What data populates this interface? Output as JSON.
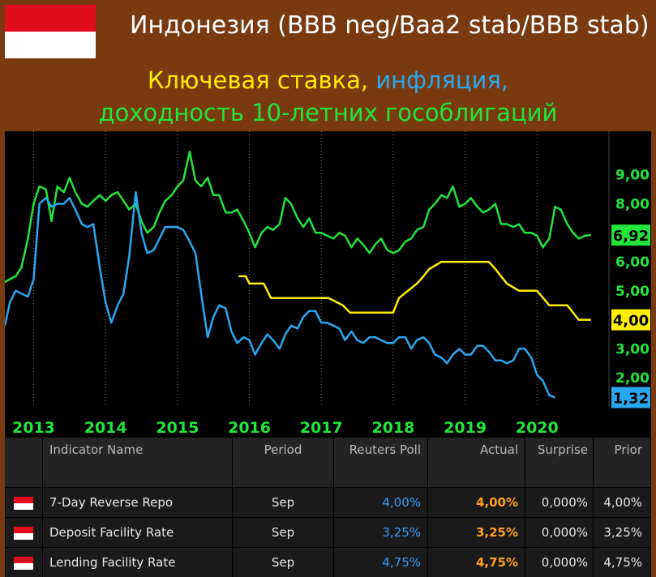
{
  "header": {
    "title": "Индонезия (BBB neg/Baa2 stab/BBB stab)",
    "subtitle_key_rate": "Ключевая ставка,",
    "subtitle_inflation": "инфляция,",
    "subtitle_yield": "доходность 10-летних гособлигаций"
  },
  "colors": {
    "yield": "#21e53a",
    "key_rate": "#ffee00",
    "inflation": "#29a8f0",
    "background": "#000000",
    "frame": "#7a3a10"
  },
  "chart_data": {
    "type": "line",
    "xlim": [
      2012.6,
      2021.0
    ],
    "ylim": [
      1.0,
      10.5
    ],
    "x_ticks": [
      "2013",
      "2014",
      "2015",
      "2016",
      "2017",
      "2018",
      "2019",
      "2020"
    ],
    "x_tick_values": [
      2013,
      2014,
      2015,
      2016,
      2017,
      2018,
      2019,
      2020
    ],
    "y_ticks": [
      "2,00",
      "3,00",
      "5,00",
      "6,00",
      "8,00",
      "9,00"
    ],
    "y_tick_values": [
      2,
      3,
      5,
      6,
      8,
      9
    ],
    "last_value_labels": [
      {
        "series": "yield",
        "text": "6,92",
        "value": 6.92
      },
      {
        "series": "key_rate",
        "text": "4,00",
        "value": 4.0
      },
      {
        "series": "inflation",
        "text": "1,32",
        "value": 1.32
      }
    ],
    "series": [
      {
        "key": "yield",
        "points": [
          [
            2012.6,
            5.3
          ],
          [
            2012.67,
            5.4
          ],
          [
            2012.75,
            5.5
          ],
          [
            2012.83,
            5.8
          ],
          [
            2012.92,
            6.8
          ],
          [
            2013.0,
            8.0
          ],
          [
            2013.08,
            8.6
          ],
          [
            2013.17,
            8.5
          ],
          [
            2013.25,
            7.4
          ],
          [
            2013.33,
            8.6
          ],
          [
            2013.42,
            8.4
          ],
          [
            2013.5,
            8.9
          ],
          [
            2013.58,
            8.4
          ],
          [
            2013.67,
            8.0
          ],
          [
            2013.75,
            7.9
          ],
          [
            2013.83,
            8.1
          ],
          [
            2013.92,
            8.3
          ],
          [
            2014.0,
            8.1
          ],
          [
            2014.08,
            8.3
          ],
          [
            2014.17,
            8.4
          ],
          [
            2014.25,
            8.1
          ],
          [
            2014.33,
            7.8
          ],
          [
            2014.42,
            8.0
          ],
          [
            2014.5,
            7.4
          ],
          [
            2014.58,
            7.0
          ],
          [
            2014.67,
            7.2
          ],
          [
            2014.75,
            7.7
          ],
          [
            2014.83,
            8.1
          ],
          [
            2014.92,
            8.3
          ],
          [
            2015.0,
            8.6
          ],
          [
            2015.08,
            8.8
          ],
          [
            2015.17,
            9.8
          ],
          [
            2015.25,
            8.8
          ],
          [
            2015.33,
            8.6
          ],
          [
            2015.42,
            8.9
          ],
          [
            2015.5,
            8.3
          ],
          [
            2015.58,
            8.3
          ],
          [
            2015.67,
            7.7
          ],
          [
            2015.75,
            7.7
          ],
          [
            2015.83,
            7.8
          ],
          [
            2015.92,
            7.4
          ],
          [
            2016.0,
            7.0
          ],
          [
            2016.08,
            6.5
          ],
          [
            2016.17,
            7.0
          ],
          [
            2016.25,
            7.2
          ],
          [
            2016.33,
            7.1
          ],
          [
            2016.42,
            7.3
          ],
          [
            2016.5,
            8.2
          ],
          [
            2016.58,
            8.0
          ],
          [
            2016.67,
            7.5
          ],
          [
            2016.75,
            7.2
          ],
          [
            2016.83,
            7.5
          ],
          [
            2016.92,
            7.0
          ],
          [
            2017.0,
            7.0
          ],
          [
            2017.08,
            6.9
          ],
          [
            2017.17,
            6.8
          ],
          [
            2017.25,
            7.0
          ],
          [
            2017.33,
            6.9
          ],
          [
            2017.42,
            6.5
          ],
          [
            2017.5,
            6.8
          ],
          [
            2017.58,
            6.6
          ],
          [
            2017.67,
            6.3
          ],
          [
            2017.75,
            6.6
          ],
          [
            2017.83,
            6.8
          ],
          [
            2017.92,
            6.4
          ],
          [
            2018.0,
            6.3
          ],
          [
            2018.08,
            6.4
          ],
          [
            2018.17,
            6.7
          ],
          [
            2018.25,
            6.8
          ],
          [
            2018.33,
            7.1
          ],
          [
            2018.42,
            7.2
          ],
          [
            2018.5,
            7.8
          ],
          [
            2018.58,
            8.0
          ],
          [
            2018.67,
            8.3
          ],
          [
            2018.75,
            8.2
          ],
          [
            2018.83,
            8.6
          ],
          [
            2018.92,
            7.9
          ],
          [
            2019.0,
            8.0
          ],
          [
            2019.08,
            8.2
          ],
          [
            2019.17,
            7.9
          ],
          [
            2019.25,
            7.7
          ],
          [
            2019.33,
            7.8
          ],
          [
            2019.42,
            8.0
          ],
          [
            2019.5,
            7.3
          ],
          [
            2019.58,
            7.3
          ],
          [
            2019.67,
            7.2
          ],
          [
            2019.75,
            7.3
          ],
          [
            2019.83,
            7.0
          ],
          [
            2019.92,
            7.0
          ],
          [
            2020.0,
            6.9
          ],
          [
            2020.08,
            6.5
          ],
          [
            2020.17,
            6.8
          ],
          [
            2020.25,
            7.9
          ],
          [
            2020.33,
            7.8
          ],
          [
            2020.42,
            7.3
          ],
          [
            2020.5,
            7.0
          ],
          [
            2020.58,
            6.8
          ],
          [
            2020.67,
            6.9
          ],
          [
            2020.75,
            6.92
          ]
        ]
      },
      {
        "key": "key_rate",
        "points": [
          [
            2015.85,
            5.5
          ],
          [
            2015.95,
            5.5
          ],
          [
            2016.0,
            5.25
          ],
          [
            2016.2,
            5.25
          ],
          [
            2016.3,
            4.75
          ],
          [
            2017.0,
            4.75
          ],
          [
            2017.1,
            4.75
          ],
          [
            2017.3,
            4.5
          ],
          [
            2017.4,
            4.25
          ],
          [
            2017.9,
            4.25
          ],
          [
            2018.0,
            4.25
          ],
          [
            2018.08,
            4.75
          ],
          [
            2018.33,
            5.25
          ],
          [
            2018.42,
            5.5
          ],
          [
            2018.5,
            5.75
          ],
          [
            2018.67,
            6.0
          ],
          [
            2019.33,
            6.0
          ],
          [
            2019.42,
            5.75
          ],
          [
            2019.58,
            5.25
          ],
          [
            2019.75,
            5.0
          ],
          [
            2020.0,
            5.0
          ],
          [
            2020.17,
            4.5
          ],
          [
            2020.42,
            4.5
          ],
          [
            2020.58,
            4.0
          ],
          [
            2020.75,
            4.0
          ]
        ]
      },
      {
        "key": "inflation",
        "points": [
          [
            2012.6,
            3.8
          ],
          [
            2012.67,
            4.6
          ],
          [
            2012.75,
            5.0
          ],
          [
            2012.83,
            4.9
          ],
          [
            2012.92,
            4.8
          ],
          [
            2013.0,
            5.4
          ],
          [
            2013.08,
            8.0
          ],
          [
            2013.17,
            8.2
          ],
          [
            2013.25,
            7.9
          ],
          [
            2013.33,
            8.0
          ],
          [
            2013.42,
            8.0
          ],
          [
            2013.5,
            8.2
          ],
          [
            2013.58,
            7.8
          ],
          [
            2013.67,
            7.3
          ],
          [
            2013.75,
            7.2
          ],
          [
            2013.83,
            7.3
          ],
          [
            2013.92,
            5.8
          ],
          [
            2014.0,
            4.6
          ],
          [
            2014.08,
            3.9
          ],
          [
            2014.17,
            4.5
          ],
          [
            2014.25,
            4.9
          ],
          [
            2014.33,
            6.2
          ],
          [
            2014.42,
            8.4
          ],
          [
            2014.5,
            7.0
          ],
          [
            2014.58,
            6.3
          ],
          [
            2014.67,
            6.4
          ],
          [
            2014.75,
            6.8
          ],
          [
            2014.83,
            7.2
          ],
          [
            2014.92,
            7.2
          ],
          [
            2015.0,
            7.2
          ],
          [
            2015.08,
            7.1
          ],
          [
            2015.17,
            6.7
          ],
          [
            2015.25,
            6.3
          ],
          [
            2015.33,
            4.9
          ],
          [
            2015.42,
            3.4
          ],
          [
            2015.5,
            4.1
          ],
          [
            2015.58,
            4.5
          ],
          [
            2015.67,
            4.4
          ],
          [
            2015.75,
            3.6
          ],
          [
            2015.83,
            3.2
          ],
          [
            2015.92,
            3.4
          ],
          [
            2016.0,
            3.3
          ],
          [
            2016.08,
            2.8
          ],
          [
            2016.17,
            3.2
          ],
          [
            2016.25,
            3.5
          ],
          [
            2016.33,
            3.3
          ],
          [
            2016.42,
            3.0
          ],
          [
            2016.5,
            3.5
          ],
          [
            2016.58,
            3.8
          ],
          [
            2016.67,
            3.7
          ],
          [
            2016.75,
            4.1
          ],
          [
            2016.83,
            4.3
          ],
          [
            2016.92,
            4.3
          ],
          [
            2017.0,
            3.9
          ],
          [
            2017.08,
            3.9
          ],
          [
            2017.17,
            3.8
          ],
          [
            2017.25,
            3.7
          ],
          [
            2017.33,
            3.3
          ],
          [
            2017.42,
            3.6
          ],
          [
            2017.5,
            3.3
          ],
          [
            2017.58,
            3.2
          ],
          [
            2017.67,
            3.4
          ],
          [
            2017.75,
            3.4
          ],
          [
            2017.83,
            3.3
          ],
          [
            2017.92,
            3.2
          ],
          [
            2018.0,
            3.2
          ],
          [
            2018.08,
            3.4
          ],
          [
            2018.17,
            3.4
          ],
          [
            2018.25,
            3.0
          ],
          [
            2018.33,
            3.3
          ],
          [
            2018.42,
            3.4
          ],
          [
            2018.5,
            3.2
          ],
          [
            2018.58,
            2.8
          ],
          [
            2018.67,
            2.7
          ],
          [
            2018.75,
            2.5
          ],
          [
            2018.83,
            2.8
          ],
          [
            2018.92,
            3.0
          ],
          [
            2019.0,
            2.8
          ],
          [
            2019.08,
            2.8
          ],
          [
            2019.17,
            3.1
          ],
          [
            2019.25,
            3.1
          ],
          [
            2019.33,
            2.9
          ],
          [
            2019.42,
            2.6
          ],
          [
            2019.5,
            2.6
          ],
          [
            2019.58,
            2.5
          ],
          [
            2019.67,
            2.6
          ],
          [
            2019.75,
            3.0
          ],
          [
            2019.83,
            3.0
          ],
          [
            2019.92,
            2.7
          ],
          [
            2020.0,
            2.1
          ],
          [
            2020.08,
            1.9
          ],
          [
            2020.17,
            1.4
          ],
          [
            2020.25,
            1.32
          ]
        ]
      }
    ]
  },
  "table": {
    "headers": {
      "name": "Indicator Name",
      "period": "Period",
      "poll": "Reuters Poll",
      "actual": "Actual",
      "surprise": "Surprise",
      "prior": "Prior"
    },
    "rows": [
      {
        "name": "7-Day Reverse Repo",
        "period": "Sep",
        "poll": "4,00%",
        "actual": "4,00%",
        "surprise": "0,000%",
        "prior": "4,00%"
      },
      {
        "name": "Deposit Facility Rate",
        "period": "Sep",
        "poll": "3,25%",
        "actual": "3,25%",
        "surprise": "0,000%",
        "prior": "3,25%"
      },
      {
        "name": "Lending Facility Rate",
        "period": "Sep",
        "poll": "4,75%",
        "actual": "4,75%",
        "surprise": "0,000%",
        "prior": "4,75%"
      }
    ]
  }
}
